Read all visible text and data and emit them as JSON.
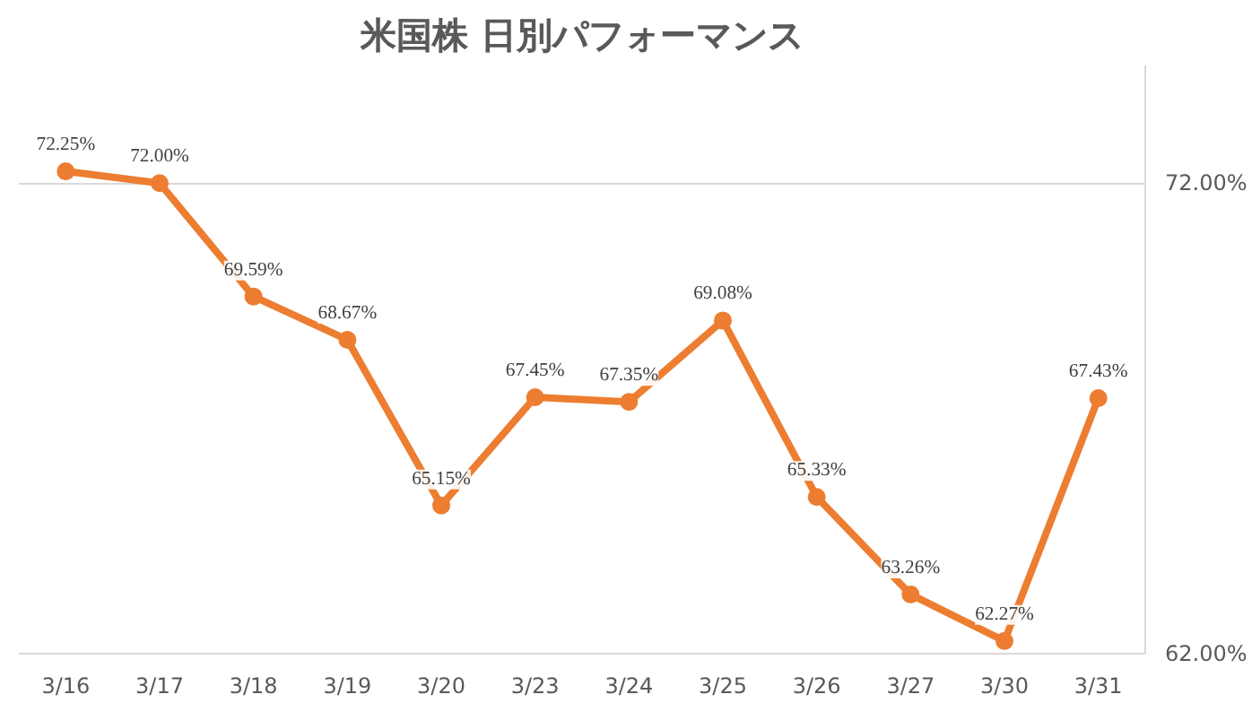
{
  "chart_data": {
    "type": "line",
    "title": "米国株 日別パフォーマンス",
    "categories": [
      "3/16",
      "3/17",
      "3/18",
      "3/19",
      "3/20",
      "3/23",
      "3/24",
      "3/25",
      "3/26",
      "3/27",
      "3/30",
      "3/31"
    ],
    "series": [
      {
        "color": "#ed7d31",
        "values": [
          72.25,
          72.0,
          69.59,
          68.67,
          65.15,
          67.45,
          67.35,
          69.08,
          65.33,
          63.26,
          62.27,
          67.43
        ],
        "value_labels": [
          "72.25%",
          "72.00%",
          "69.59%",
          "68.67%",
          "65.15%",
          "67.45%",
          "67.35%",
          "69.08%",
          "65.33%",
          "63.26%",
          "62.27%",
          "67.43%"
        ]
      }
    ],
    "ylim": [
      62,
      74.5
    ],
    "yticks": [
      {
        "value": 62,
        "label": "62.00%"
      },
      {
        "value": 72,
        "label": "72.00%"
      }
    ],
    "grid": "y",
    "marker": "circle",
    "line_style": "solid"
  }
}
